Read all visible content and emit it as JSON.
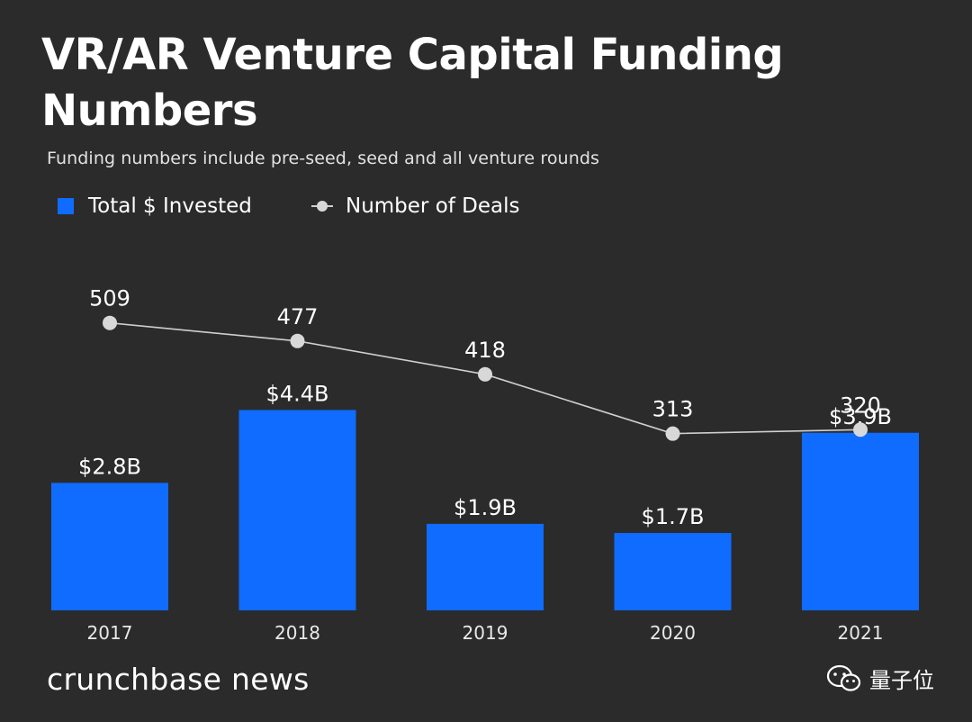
{
  "header": {
    "title": "VR/AR Venture Capital Funding Numbers",
    "subtitle": "Funding numbers include pre-seed, seed and all venture rounds"
  },
  "legend": {
    "bar_label": "Total $ Invested",
    "line_label": "Number of Deals"
  },
  "footer": {
    "brand": "crunchbase news",
    "watermark": "量子位",
    "watermark_icon": "wechat-icon"
  },
  "colors": {
    "background": "#2b2b2b",
    "bar": "#0f6cff",
    "line": "#cfcfcf",
    "marker": "#d8d8d8",
    "text": "#ffffff"
  },
  "chart_data": {
    "type": "bar",
    "title": "VR/AR Venture Capital Funding Numbers",
    "subtitle": "Funding numbers include pre-seed, seed and all venture rounds",
    "categories": [
      "2017",
      "2018",
      "2019",
      "2020",
      "2021"
    ],
    "series": [
      {
        "name": "Total $ Invested",
        "type": "bar",
        "unit": "USD billions",
        "values": [
          2.8,
          4.4,
          1.9,
          1.7,
          3.9
        ],
        "labels": [
          "$2.8B",
          "$4.4B",
          "$1.9B",
          "$1.7B",
          "$3.9B"
        ]
      },
      {
        "name": "Number of Deals",
        "type": "line",
        "values": [
          509,
          477,
          418,
          313,
          320
        ],
        "labels": [
          "509",
          "477",
          "418",
          "313",
          "320"
        ]
      }
    ],
    "bar_ylim": [
      0,
      5.2
    ],
    "line_ylim": [
      0,
      660
    ],
    "grid": false,
    "legend_position": "top-left"
  }
}
